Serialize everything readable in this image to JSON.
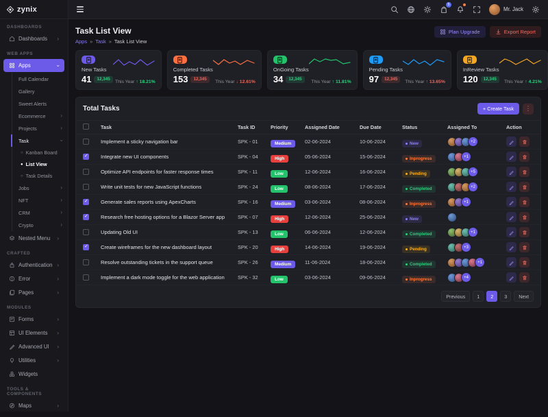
{
  "brand": {
    "name": "zynix"
  },
  "topbar": {
    "user_name": "Mr. Jack",
    "cart_badge": "5"
  },
  "page": {
    "title": "Task List View",
    "breadcrumb": [
      "Apps",
      "Task",
      "Task List View"
    ],
    "separator": "»",
    "actions": [
      {
        "label": "Plan Upgrade"
      },
      {
        "label": "Export Report"
      }
    ]
  },
  "sidebar": {
    "items": [
      {
        "type": "section",
        "label": "DASHBOARDS"
      },
      {
        "type": "item",
        "label": "Dashboards",
        "icon": "home-icon",
        "chevron": "right"
      },
      {
        "type": "section",
        "label": "WEB APPS"
      },
      {
        "type": "item",
        "label": "Apps",
        "icon": "grid-icon",
        "chevron": "down",
        "state": "active"
      },
      {
        "type": "sub",
        "label": "Full Calendar"
      },
      {
        "type": "sub",
        "label": "Gallery"
      },
      {
        "type": "sub",
        "label": "Sweet Alerts"
      },
      {
        "type": "sub",
        "label": "Ecommerce",
        "chevron": "right"
      },
      {
        "type": "sub",
        "label": "Projects",
        "chevron": "right"
      },
      {
        "type": "sub",
        "label": "Task",
        "chevron": "down",
        "state": "open"
      },
      {
        "type": "sub2",
        "label": "Kanban Board"
      },
      {
        "type": "sub2",
        "label": "List View",
        "state": "active"
      },
      {
        "type": "sub2",
        "label": "Task Details"
      },
      {
        "type": "sub",
        "label": "Jobs",
        "chevron": "right"
      },
      {
        "type": "sub",
        "label": "NFT",
        "chevron": "right"
      },
      {
        "type": "sub",
        "label": "CRM",
        "chevron": "right"
      },
      {
        "type": "sub",
        "label": "Crypto",
        "chevron": "right"
      },
      {
        "type": "item",
        "label": "Nested Menu",
        "icon": "layers-icon",
        "chevron": "right"
      },
      {
        "type": "section",
        "label": "CRAFTED"
      },
      {
        "type": "item",
        "label": "Authentication",
        "icon": "lock-icon",
        "chevron": "right"
      },
      {
        "type": "item",
        "label": "Error",
        "icon": "alert-icon",
        "chevron": "right"
      },
      {
        "type": "item",
        "label": "Pages",
        "icon": "pages-icon",
        "chevron": "right"
      },
      {
        "type": "section",
        "label": "MODULES"
      },
      {
        "type": "item",
        "label": "Forms",
        "icon": "forms-icon",
        "chevron": "right"
      },
      {
        "type": "item",
        "label": "UI Elements",
        "icon": "ui-icon",
        "chevron": "right"
      },
      {
        "type": "item",
        "label": "Advanced UI",
        "icon": "pen-icon",
        "chevron": "right"
      },
      {
        "type": "item",
        "label": "Utilities",
        "icon": "bulb-icon",
        "chevron": "right"
      },
      {
        "type": "item",
        "label": "Widgets",
        "icon": "widgets-icon"
      },
      {
        "type": "section",
        "label": "TOOLS & COMPONENTS"
      },
      {
        "type": "item",
        "label": "Maps",
        "icon": "compass-icon",
        "chevron": "right"
      }
    ]
  },
  "cards": [
    {
      "label": "New Tasks",
      "value": "41",
      "badge": "12,345",
      "badge_tone": "green",
      "trend_label": "This Year",
      "trend_value": "↑ 18.21%",
      "trend_tone": "up",
      "color": "#6c5be8"
    },
    {
      "label": "Completed Tasks",
      "value": "153",
      "badge": "12,345",
      "badge_tone": "red",
      "trend_label": "This Year",
      "trend_value": "↓ 12.61%",
      "trend_tone": "down",
      "color": "#fd7041"
    },
    {
      "label": "OnGoing Tasks",
      "value": "34",
      "badge": "12,345",
      "badge_tone": "green",
      "trend_label": "This Year",
      "trend_value": "↑ 11.81%",
      "trend_tone": "up",
      "color": "#23c26b"
    },
    {
      "label": "Pending Tasks",
      "value": "97",
      "badge": "12,345",
      "badge_tone": "red",
      "trend_label": "This Year",
      "trend_value": "↑ 13.65%",
      "trend_tone": "down",
      "color": "#1f9cf7"
    },
    {
      "label": "InReview Tasks",
      "value": "120",
      "badge": "12,345",
      "badge_tone": "green",
      "trend_label": "This Year",
      "trend_value": "↑ 4.21%",
      "trend_tone": "up",
      "color": "#f5a623"
    }
  ],
  "table": {
    "title": "Total Tasks",
    "create_label": "+ Create Task",
    "columns": [
      "Task",
      "Task ID",
      "Priority",
      "Assigned Date",
      "Due Date",
      "Status",
      "Assigned To",
      "Action"
    ],
    "rows": [
      {
        "task": "Implement a sticky navigation bar",
        "id": "SPK - 01",
        "priority": "Medium",
        "priority_tone": "purple",
        "assigned": "02-06-2024",
        "due": "10-06-2024",
        "status": "New",
        "status_tone": "new",
        "avatars": 3,
        "extra": "+2",
        "checked": false
      },
      {
        "task": "Integrate new UI components",
        "id": "SPK - 04",
        "priority": "High",
        "priority_tone": "red",
        "assigned": "05-06-2024",
        "due": "15-06-2024",
        "status": "Inprogress",
        "status_tone": "inprogress",
        "avatars": 2,
        "extra": "+1",
        "checked": true
      },
      {
        "task": "Optimize API endpoints for faster response times",
        "id": "SPK - 11",
        "priority": "Low",
        "priority_tone": "green",
        "assigned": "12-06-2024",
        "due": "16-06-2024",
        "status": "Pending",
        "status_tone": "pending",
        "avatars": 3,
        "extra": "+5",
        "checked": false
      },
      {
        "task": "Write unit tests for new JavaScript functions",
        "id": "SPK - 24",
        "priority": "Low",
        "priority_tone": "green",
        "assigned": "08-06-2024",
        "due": "17-06-2024",
        "status": "Completed",
        "status_tone": "completed",
        "avatars": 3,
        "extra": "+2",
        "checked": false
      },
      {
        "task": "Generate sales reports using ApexCharts",
        "id": "SPK - 16",
        "priority": "Medium",
        "priority_tone": "purple",
        "assigned": "03-06-2024",
        "due": "08-06-2024",
        "status": "Inprogress",
        "status_tone": "inprogress",
        "avatars": 2,
        "extra": "+1",
        "checked": true
      },
      {
        "task": "Research free hosting options for a Blazor Server app",
        "id": "SPK - 07",
        "priority": "High",
        "priority_tone": "red",
        "assigned": "12-06-2024",
        "due": "25-06-2024",
        "status": "New",
        "status_tone": "new",
        "avatars": 1,
        "extra": "",
        "checked": true
      },
      {
        "task": "Updating Old UI",
        "id": "SPK - 13",
        "priority": "Low",
        "priority_tone": "green",
        "assigned": "06-06-2024",
        "due": "12-06-2024",
        "status": "Completed",
        "status_tone": "completed",
        "avatars": 3,
        "extra": "+1",
        "checked": false
      },
      {
        "task": "Create wireframes for the new dashboard layout",
        "id": "SPK - 20",
        "priority": "High",
        "priority_tone": "red",
        "assigned": "14-06-2024",
        "due": "19-06-2024",
        "status": "Pending",
        "status_tone": "pending",
        "avatars": 2,
        "extra": "+3",
        "checked": true
      },
      {
        "task": "Resolve outstanding tickets in the support queue",
        "id": "SPK - 26",
        "priority": "Medium",
        "priority_tone": "purple",
        "assigned": "11-06-2024",
        "due": "18-06-2024",
        "status": "Completed",
        "status_tone": "completed",
        "avatars": 4,
        "extra": "+1",
        "checked": false
      },
      {
        "task": "Implement a dark mode toggle for the web application",
        "id": "SPK - 32",
        "priority": "Low",
        "priority_tone": "green",
        "assigned": "03-06-2024",
        "due": "09-06-2024",
        "status": "Inprogress",
        "status_tone": "inprogress",
        "avatars": 2,
        "extra": "+4",
        "checked": false
      }
    ],
    "pagination": {
      "prev": "Previous",
      "pages": [
        "1",
        "2",
        "3"
      ],
      "active_index": 1,
      "next": "Next"
    }
  }
}
